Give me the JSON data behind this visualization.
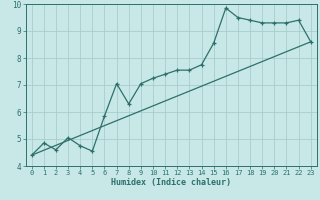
{
  "xlabel": "Humidex (Indice chaleur)",
  "xlim": [
    -0.5,
    23.5
  ],
  "ylim": [
    4,
    10
  ],
  "xticks": [
    0,
    1,
    2,
    3,
    4,
    5,
    6,
    7,
    8,
    9,
    10,
    11,
    12,
    13,
    14,
    15,
    16,
    17,
    18,
    19,
    20,
    21,
    22,
    23
  ],
  "yticks": [
    4,
    5,
    6,
    7,
    8,
    9,
    10
  ],
  "bg_color": "#c8e8e8",
  "line_color": "#2d706a",
  "grid_color": "#a8cccc",
  "line1_x": [
    0,
    1,
    2,
    3,
    4,
    5,
    6,
    7,
    8,
    9,
    10,
    11,
    12,
    13,
    14,
    15,
    16,
    17,
    18,
    19,
    20,
    21,
    22,
    23
  ],
  "line1_y": [
    4.4,
    4.85,
    4.6,
    5.05,
    4.75,
    4.55,
    5.85,
    7.05,
    6.3,
    7.05,
    7.25,
    7.4,
    7.55,
    7.55,
    7.75,
    8.55,
    9.85,
    9.5,
    9.4,
    9.3,
    9.3,
    9.3,
    9.4,
    8.6
  ],
  "line2_x": [
    0,
    23
  ],
  "line2_y": [
    4.4,
    8.6
  ],
  "marker": "+"
}
